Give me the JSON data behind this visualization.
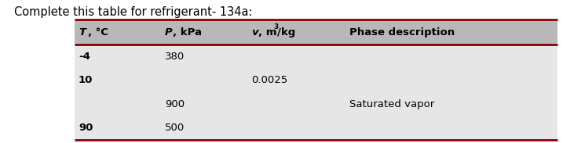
{
  "title": "Complete this table for refrigerant- 134a:",
  "rows": [
    [
      "-4",
      "380",
      "",
      ""
    ],
    [
      "10",
      "",
      "0.0025",
      ""
    ],
    [
      "",
      "900",
      "",
      "Saturated vapor"
    ],
    [
      "90",
      "500",
      "",
      ""
    ]
  ],
  "header_bg": "#b8b8b8",
  "row_bg": "#e6e6e6",
  "border_color": "#8b0000",
  "border_width": 2.0,
  "title_fontsize": 10.5,
  "header_fontsize": 9.5,
  "cell_fontsize": 9.5,
  "fig_width": 7.17,
  "fig_height": 1.83
}
